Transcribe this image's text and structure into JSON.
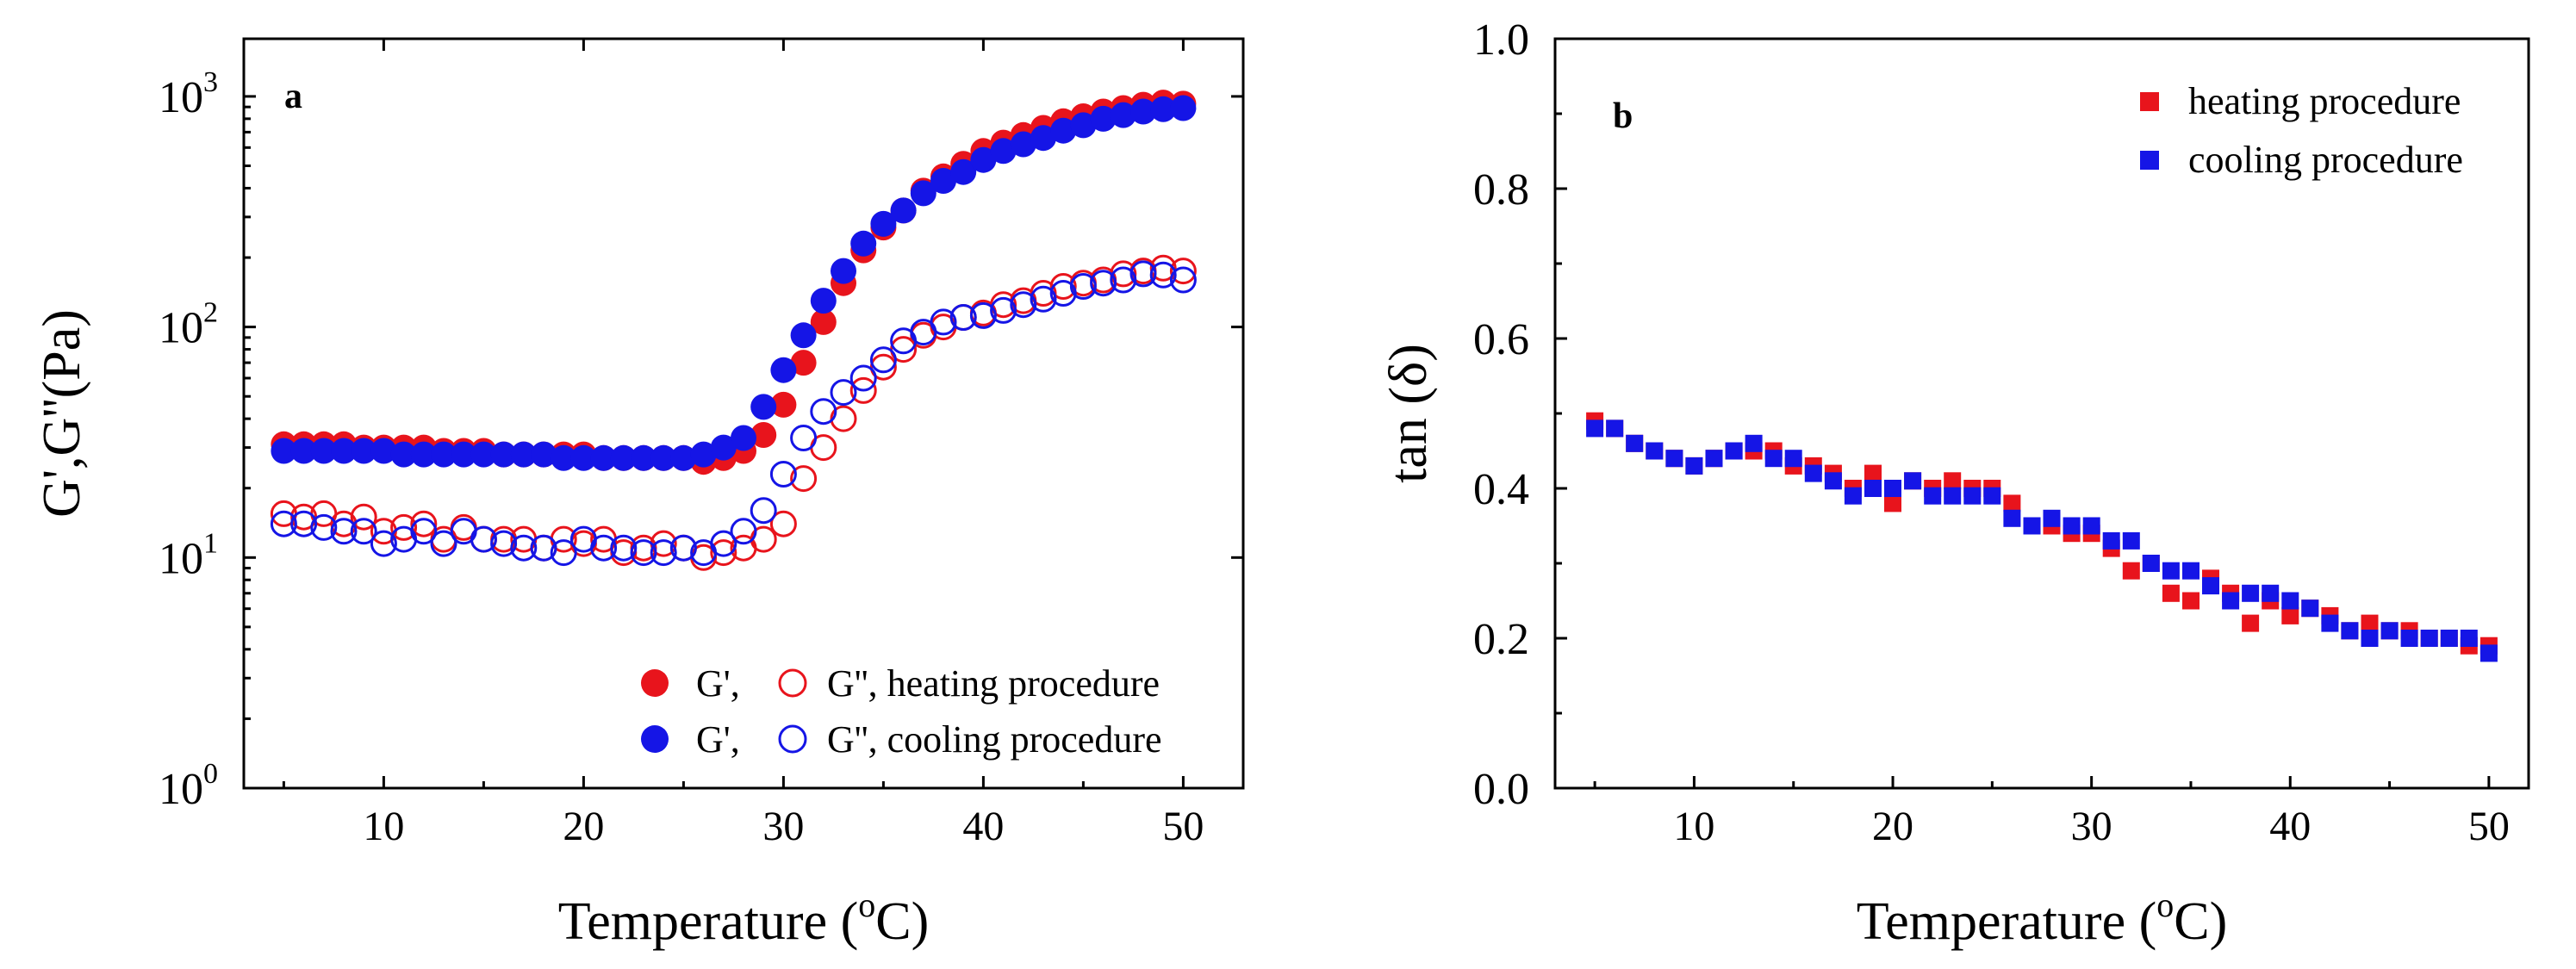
{
  "chart_data": [
    {
      "type": "scatter",
      "panel_label": "a",
      "xlabel": "Temperature (",
      "xlabel_sup": "o",
      "xlabel_end": "C)",
      "ylabel": "G',G''(Pa)",
      "xlim": [
        3,
        53
      ],
      "ylim_log10": [
        0,
        3.25
      ],
      "y_scale": "log",
      "x_ticks": [
        10,
        20,
        30,
        40,
        50
      ],
      "y_ticks": [
        {
          "base": "10",
          "exp": "0",
          "value": 1
        },
        {
          "base": "10",
          "exp": "1",
          "value": 10
        },
        {
          "base": "10",
          "exp": "2",
          "value": 100
        },
        {
          "base": "10",
          "exp": "3",
          "value": 1000
        }
      ],
      "legend_position": "bottom-right",
      "legend_rows": [
        {
          "g1": "G',",
          "g2": "G'', heating procedure",
          "color": "#e8141c"
        },
        {
          "g1": "G',",
          "g2": "G'', cooling procedure",
          "color": "#1515e6"
        }
      ],
      "x": [
        5,
        6,
        7,
        8,
        9,
        10,
        11,
        12,
        13,
        14,
        15,
        16,
        17,
        18,
        19,
        20,
        21,
        22,
        23,
        24,
        25,
        26,
        27,
        28,
        29,
        30,
        31,
        32,
        33,
        34,
        35,
        36,
        37,
        38,
        39,
        40,
        41,
        42,
        43,
        44,
        45,
        46,
        47,
        48,
        49,
        50
      ],
      "series": [
        {
          "name": "G' heating",
          "color": "#e8141c",
          "filled": true,
          "values": [
            31,
            31,
            31,
            31,
            30,
            30,
            30,
            30,
            29,
            29,
            29,
            28,
            28,
            28,
            28,
            28,
            27,
            27,
            27,
            27,
            27,
            26,
            27,
            29,
            34,
            46,
            70,
            105,
            155,
            215,
            270,
            320,
            390,
            450,
            510,
            580,
            630,
            680,
            730,
            780,
            820,
            860,
            890,
            920,
            940,
            930
          ]
        },
        {
          "name": "G' cooling",
          "color": "#1515e6",
          "filled": true,
          "values": [
            29,
            29,
            29,
            29,
            29,
            29,
            28,
            28,
            28,
            28,
            28,
            28,
            28,
            28,
            27,
            27,
            27,
            27,
            27,
            27,
            27,
            28,
            30,
            33,
            45,
            65,
            92,
            130,
            175,
            230,
            280,
            320,
            380,
            430,
            470,
            530,
            580,
            620,
            660,
            710,
            750,
            800,
            830,
            860,
            880,
            890
          ]
        },
        {
          "name": "G'' heating",
          "color": "#e8141c",
          "filled": false,
          "values": [
            15.5,
            15,
            15.5,
            14,
            15,
            13,
            13.5,
            14,
            12,
            13.5,
            12,
            12,
            12,
            11,
            12,
            11.5,
            12,
            10.5,
            11,
            11.5,
            11,
            10,
            10.5,
            11,
            12,
            14,
            22,
            30,
            40,
            53,
            67,
            80,
            92,
            100,
            110,
            115,
            125,
            130,
            140,
            150,
            155,
            160,
            170,
            175,
            180,
            175
          ]
        },
        {
          "name": "G'' cooling",
          "color": "#1515e6",
          "filled": false,
          "values": [
            14,
            14,
            13.5,
            13,
            13,
            11.5,
            12,
            13,
            11.5,
            13,
            12,
            11.5,
            11,
            11,
            10.5,
            12,
            11,
            11,
            10.5,
            10.5,
            11,
            10.5,
            11.5,
            13,
            16,
            23,
            33,
            43,
            52,
            60,
            72,
            87,
            95,
            105,
            110,
            112,
            118,
            125,
            132,
            140,
            150,
            155,
            160,
            170,
            168,
            160
          ]
        }
      ]
    },
    {
      "type": "scatter",
      "panel_label": "b",
      "xlabel": "Temperature (",
      "xlabel_sup": "o",
      "xlabel_end": "C)",
      "ylabel": "tan (δ)",
      "xlim": [
        3,
        52
      ],
      "ylim": [
        0,
        1.0
      ],
      "x_ticks": [
        10,
        20,
        30,
        40,
        50
      ],
      "y_ticks": [
        "0.0",
        "0.2",
        "0.4",
        "0.6",
        "0.8",
        "1.0"
      ],
      "legend_position": "top-right",
      "x": [
        5,
        6,
        7,
        8,
        9,
        10,
        11,
        12,
        13,
        14,
        15,
        16,
        17,
        18,
        19,
        20,
        21,
        22,
        23,
        24,
        25,
        26,
        27,
        28,
        29,
        30,
        31,
        32,
        33,
        34,
        35,
        36,
        37,
        38,
        39,
        40,
        41,
        42,
        43,
        44,
        45,
        46,
        47,
        48,
        49,
        50
      ],
      "series": [
        {
          "name": "heating procedure",
          "color": "#e8141c",
          "values": [
            0.49,
            0.48,
            0.46,
            0.45,
            0.44,
            0.43,
            0.44,
            0.45,
            0.45,
            0.45,
            0.43,
            0.43,
            0.42,
            0.4,
            0.42,
            0.38,
            0.41,
            0.4,
            0.41,
            0.4,
            0.4,
            0.38,
            0.35,
            0.35,
            0.34,
            0.34,
            0.32,
            0.29,
            0.3,
            0.26,
            0.25,
            0.28,
            0.26,
            0.22,
            0.25,
            0.23,
            0.24,
            0.23,
            0.21,
            0.22,
            0.21,
            0.21,
            0.2,
            0.2,
            0.19,
            0.19
          ]
        },
        {
          "name": "cooling procedure",
          "color": "#1515e6",
          "values": [
            0.48,
            0.48,
            0.46,
            0.45,
            0.44,
            0.43,
            0.44,
            0.45,
            0.46,
            0.44,
            0.44,
            0.42,
            0.41,
            0.39,
            0.4,
            0.4,
            0.41,
            0.39,
            0.39,
            0.39,
            0.39,
            0.36,
            0.35,
            0.36,
            0.35,
            0.35,
            0.33,
            0.33,
            0.3,
            0.29,
            0.29,
            0.27,
            0.25,
            0.26,
            0.26,
            0.25,
            0.24,
            0.22,
            0.21,
            0.2,
            0.21,
            0.2,
            0.2,
            0.2,
            0.2,
            0.18
          ]
        }
      ]
    }
  ]
}
